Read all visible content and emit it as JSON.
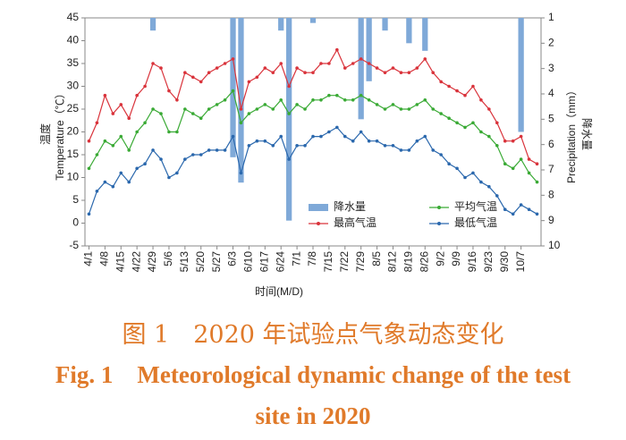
{
  "chart_data": {
    "type": "line",
    "x_label": "时间(M/D)",
    "y_label": "Temperature（℃）",
    "y_label_cn": "温度",
    "y2_label": "Precipitation（mm）",
    "y2_label_cn": "降水量",
    "categories": [
      "4/1",
      null,
      "4/8",
      null,
      "4/15",
      null,
      "4/22",
      null,
      "4/29",
      null,
      "5/6",
      null,
      "5/13",
      null,
      "5/20",
      null,
      "5/27",
      null,
      "6/3",
      null,
      "6/10",
      null,
      "6/17",
      null,
      "6/24",
      null,
      "7/1",
      null,
      "7/8",
      null,
      "7/15",
      null,
      "7/22",
      null,
      "7/29",
      null,
      "8/5",
      null,
      "8/12",
      null,
      "8/19",
      null,
      "8/26",
      null,
      "9/2",
      null,
      "9/9",
      null,
      "9/16",
      null,
      "9/23",
      null,
      "9/30",
      null,
      "10/7",
      null,
      null
    ],
    "series": [
      {
        "name": "降水量",
        "type": "bar",
        "axis": "y2",
        "color": "#7fa9d8",
        "values": [
          null,
          null,
          null,
          null,
          null,
          null,
          null,
          null,
          1.5,
          null,
          null,
          null,
          null,
          null,
          null,
          null,
          null,
          null,
          6.5,
          7.5,
          null,
          null,
          null,
          null,
          1.5,
          9,
          null,
          null,
          1.2,
          null,
          null,
          null,
          null,
          null,
          5,
          3.5,
          null,
          1.5,
          null,
          null,
          2,
          null,
          2.3,
          null,
          null,
          null,
          null,
          null,
          null,
          null,
          null,
          null,
          null,
          null,
          5.5,
          null,
          null
        ]
      },
      {
        "name": "平均气温",
        "color": "#3aaa35",
        "values": [
          12,
          15,
          18,
          17,
          19,
          16,
          20,
          22,
          25,
          24,
          20,
          20,
          25,
          24,
          23,
          25,
          26,
          27,
          29,
          22,
          24,
          25,
          26,
          25,
          27,
          24,
          26,
          25,
          27,
          27,
          28,
          28,
          27,
          27,
          28,
          27,
          26,
          25,
          26,
          25,
          25,
          26,
          27,
          25,
          24,
          23,
          22,
          21,
          22,
          20,
          19,
          17,
          13,
          12,
          14,
          11,
          9
        ]
      },
      {
        "name": "最高气温",
        "color": "#d9333b",
        "values": [
          18,
          22,
          28,
          24,
          26,
          23,
          28,
          30,
          35,
          34,
          29,
          27,
          33,
          32,
          31,
          33,
          34,
          35,
          36,
          25,
          31,
          32,
          34,
          33,
          35,
          30,
          34,
          33,
          33,
          35,
          35,
          38,
          34,
          35,
          36,
          35,
          34,
          33,
          34,
          33,
          33,
          34,
          36,
          33,
          31,
          30,
          29,
          28,
          30,
          27,
          25,
          22,
          18,
          18,
          19,
          14,
          13
        ]
      },
      {
        "name": "最低气温",
        "color": "#2b68ad",
        "values": [
          2,
          7,
          9,
          8,
          11,
          9,
          12,
          13,
          16,
          14,
          10,
          11,
          14,
          15,
          15,
          16,
          16,
          16,
          19,
          11,
          17,
          18,
          18,
          17,
          19,
          14,
          17,
          17,
          19,
          19,
          20,
          21,
          19,
          18,
          20,
          18,
          18,
          17,
          17,
          16,
          16,
          18,
          19,
          16,
          15,
          13,
          12,
          10,
          11,
          9,
          8,
          6,
          3,
          2,
          4,
          3,
          2
        ]
      }
    ],
    "ylim": [
      -5,
      45
    ],
    "yticks": [
      -5,
      0,
      5,
      10,
      15,
      20,
      25,
      30,
      35,
      40,
      45
    ],
    "y2lim": [
      10,
      1
    ],
    "y2ticks": [
      1,
      2,
      3,
      4,
      5,
      6,
      7,
      8,
      9,
      10
    ],
    "legend": "lower center"
  },
  "caption": {
    "cn": "图 1　2020 年试验点气象动态变化",
    "en": "Fig. 1　Meteorological dynamic change of the test site in 2020"
  }
}
